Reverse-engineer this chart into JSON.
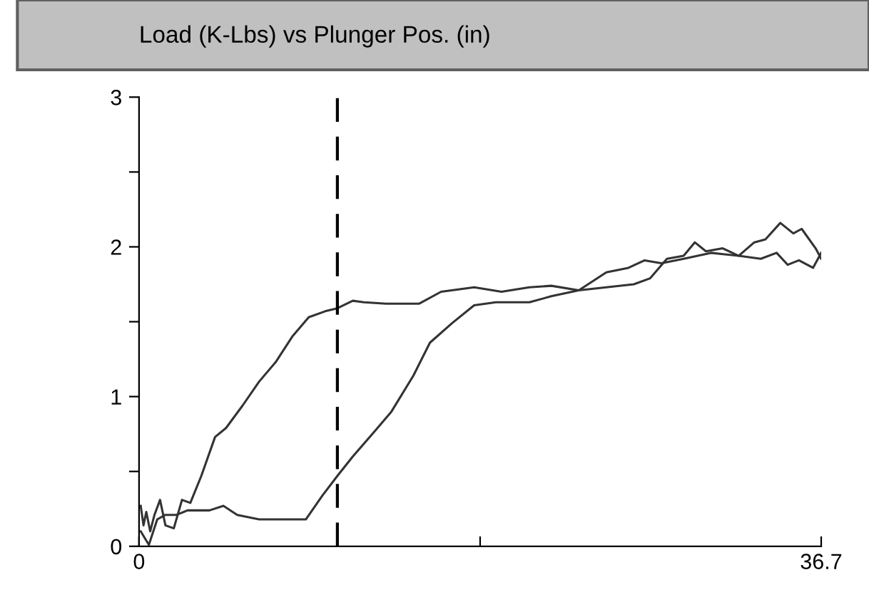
{
  "chart_data": {
    "type": "line",
    "title": "Load (K-Lbs) vs Plunger Pos. (in)",
    "xlim": [
      0,
      36.7
    ],
    "ylim": [
      0,
      3
    ],
    "xticks": [
      0,
      {
        "value": 18.35,
        "label": null
      },
      36.7
    ],
    "yticks": [
      0,
      {
        "value": 0.5,
        "label": null
      },
      1,
      {
        "value": 1.5,
        "label": null
      },
      2,
      {
        "value": 2.5,
        "label": null
      },
      3
    ],
    "grid": false,
    "legend": false,
    "marker": "none",
    "line_style": "solid",
    "ref_lines": [
      {
        "axis": "x",
        "value": 10.67,
        "color": "#000000",
        "line_style": "dashed"
      }
    ],
    "series": [
      {
        "color": "#333333",
        "x": [
          0.09,
          0.24,
          0.39,
          0.6,
          0.83,
          1.13,
          1.42,
          1.87,
          2.31,
          2.76,
          3.35,
          4.09,
          4.68,
          5.57,
          6.46,
          7.35,
          8.24,
          9.13,
          10.02,
          10.67,
          11.5,
          12.1,
          13.28,
          15.06,
          16.25,
          18.03,
          19.5,
          21.0,
          22.18,
          23.66,
          25.14,
          26.33,
          27.2,
          28.1,
          29.3,
          30.77,
          32.26,
          33.45,
          34.3,
          34.9,
          35.5,
          36.26,
          36.7
        ],
        "values": [
          0.27,
          0.14,
          0.23,
          0.1,
          0.21,
          0.31,
          0.14,
          0.12,
          0.31,
          0.29,
          0.47,
          0.73,
          0.79,
          0.94,
          1.1,
          1.23,
          1.4,
          1.53,
          1.57,
          1.59,
          1.64,
          1.63,
          1.62,
          1.62,
          1.7,
          1.73,
          1.7,
          1.73,
          1.74,
          1.71,
          1.83,
          1.86,
          1.91,
          1.89,
          1.92,
          1.96,
          1.94,
          1.92,
          1.96,
          1.88,
          1.91,
          1.86,
          1.96
        ]
      },
      {
        "color": "#333333",
        "x": [
          0.09,
          0.53,
          0.98,
          1.42,
          2.02,
          2.61,
          3.79,
          4.54,
          5.28,
          6.46,
          7.95,
          8.98,
          9.87,
          10.67,
          11.5,
          12.69,
          13.58,
          14.76,
          15.65,
          16.84,
          18.03,
          19.2,
          21.0,
          22.18,
          23.66,
          25.14,
          26.62,
          27.5,
          28.4,
          29.3,
          29.9,
          30.5,
          31.4,
          32.26,
          33.1,
          33.7,
          34.5,
          35.2,
          35.65,
          36.4,
          36.7
        ],
        "values": [
          0.1,
          0.01,
          0.18,
          0.21,
          0.21,
          0.24,
          0.24,
          0.27,
          0.21,
          0.18,
          0.18,
          0.18,
          0.34,
          0.47,
          0.6,
          0.77,
          0.9,
          1.14,
          1.36,
          1.49,
          1.61,
          1.63,
          1.63,
          1.67,
          1.71,
          1.73,
          1.75,
          1.79,
          1.92,
          1.94,
          2.03,
          1.97,
          1.99,
          1.94,
          2.03,
          2.05,
          2.16,
          2.09,
          2.12,
          1.99,
          1.92
        ]
      }
    ]
  }
}
